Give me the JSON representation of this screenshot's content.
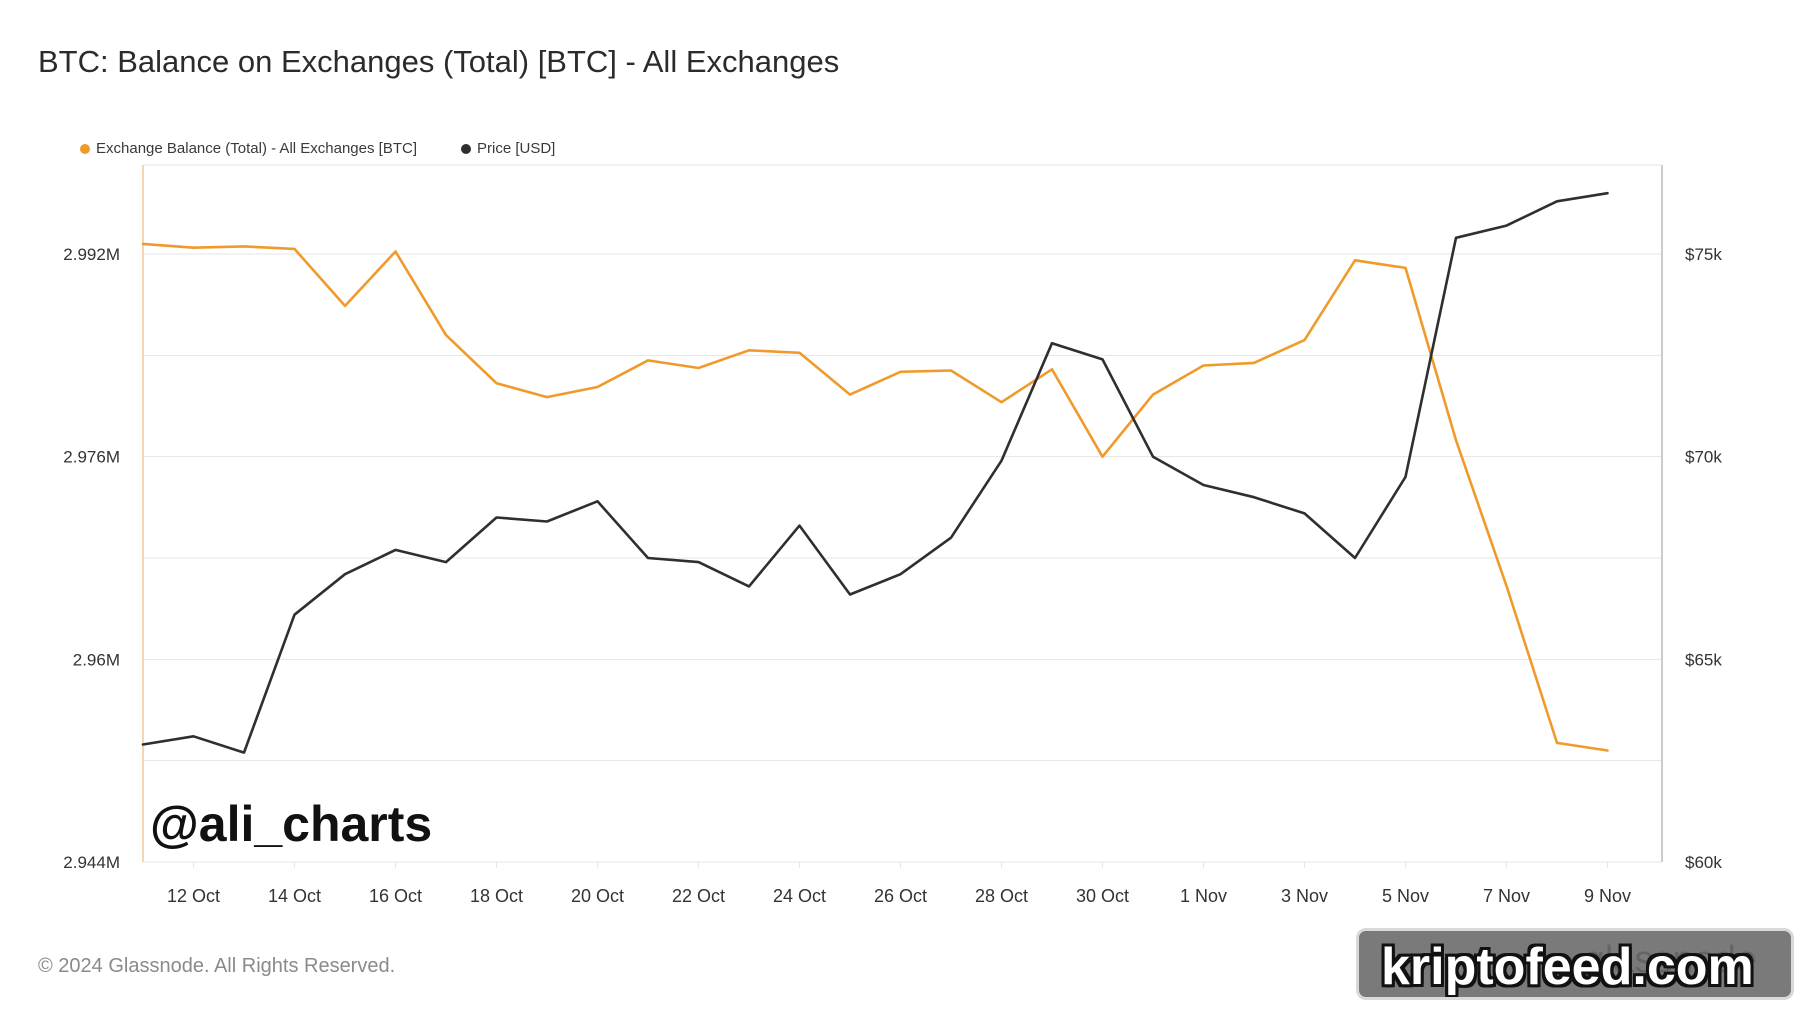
{
  "header": {
    "title": "BTC: Balance on Exchanges (Total) [BTC] - All Exchanges"
  },
  "legend": {
    "balance_label": "Exchange Balance (Total) - All Exchanges [BTC]",
    "price_label": "Price [USD]"
  },
  "watermark": "@ali_charts",
  "footer": {
    "copyright": "© 2024 Glassnode. All Rights Reserved."
  },
  "badge": {
    "text": "kriptofeed.com",
    "ghost_text": "glassnode"
  },
  "colors": {
    "balance": "#f09a2b",
    "price": "#2f2f2f",
    "grid": "#e6e6e6",
    "axis": "#f0c999"
  },
  "chart_data": {
    "type": "line",
    "title": "BTC: Balance on Exchanges (Total) [BTC] - All Exchanges",
    "x": [
      "11 Oct",
      "12 Oct",
      "13 Oct",
      "14 Oct",
      "15 Oct",
      "16 Oct",
      "17 Oct",
      "18 Oct",
      "19 Oct",
      "20 Oct",
      "21 Oct",
      "22 Oct",
      "23 Oct",
      "24 Oct",
      "25 Oct",
      "26 Oct",
      "27 Oct",
      "28 Oct",
      "29 Oct",
      "30 Oct",
      "31 Oct",
      "1 Nov",
      "2 Nov",
      "3 Nov",
      "4 Nov",
      "5 Nov",
      "6 Nov",
      "7 Nov",
      "8 Nov",
      "9 Nov"
    ],
    "x_tick_labels": [
      "12 Oct",
      "14 Oct",
      "16 Oct",
      "18 Oct",
      "20 Oct",
      "22 Oct",
      "24 Oct",
      "26 Oct",
      "28 Oct",
      "30 Oct",
      "1 Nov",
      "3 Nov",
      "5 Nov",
      "7 Nov",
      "9 Nov"
    ],
    "y_left": {
      "ticks": [
        "2.992M",
        "2.976M",
        "2.96M",
        "2.944M"
      ],
      "ylim": [
        2.944,
        3.0,
        2.992
      ]
    },
    "y_right": {
      "ticks": [
        "$75k",
        "$70k",
        "$65k",
        "$60k"
      ],
      "ylim": [
        60000,
        77500
      ]
    },
    "series": [
      {
        "name": "Exchange Balance (Total) - All Exchanges [BTC]",
        "axis": "left",
        "values": [
          2.9928,
          2.9925,
          2.9926,
          2.9924,
          2.9879,
          2.9922,
          2.9856,
          2.9818,
          2.9807,
          2.9815,
          2.9836,
          2.983,
          2.9844,
          2.9842,
          2.9809,
          2.9827,
          2.9828,
          2.9803,
          2.9829,
          2.976,
          2.9809,
          2.9832,
          2.9834,
          2.9852,
          2.9915,
          2.9909,
          2.9773,
          2.9658,
          2.9534,
          2.9528
        ]
      },
      {
        "name": "Price [USD]",
        "axis": "right",
        "values": [
          62900,
          63100,
          62700,
          66100,
          67100,
          67700,
          67400,
          68500,
          68400,
          68900,
          67500,
          67400,
          66800,
          68300,
          66600,
          67100,
          68000,
          69900,
          72800,
          72400,
          70000,
          69300,
          69000,
          68600,
          67500,
          69500,
          75400,
          75700,
          76300,
          76500
        ]
      }
    ]
  }
}
